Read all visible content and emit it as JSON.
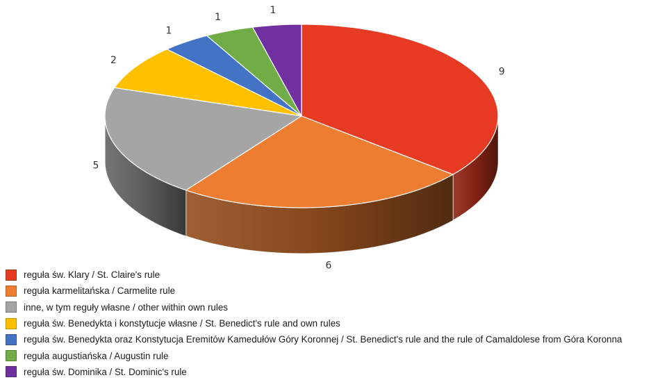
{
  "chart_data": {
    "type": "pie",
    "variant": "3d",
    "title": "",
    "series": [
      {
        "label": "reguła św. Klary / St. Claire's rule",
        "value": 9,
        "color": "#e63b22"
      },
      {
        "label": "reguła karmelitańska / Carmelite rule",
        "value": 6,
        "color": "#ed7d31"
      },
      {
        "label": "inne, w tym reguły własne / other within own rules",
        "value": 5,
        "color": "#a5a5a5"
      },
      {
        "label": "reguła św. Benedykta i konstytucje własne / St. Benedict's rule and own rules",
        "value": 2,
        "color": "#ffc000"
      },
      {
        "label": "reguła św. Benedykta oraz Konstytucja Eremitów Kamedułów Góry Koronnej / St. Benedict's rule and the rule of Camaldolese from Góra Koronna",
        "value": 1,
        "color": "#4472c4"
      },
      {
        "label": "reguła augustiańska / Augustin rule",
        "value": 1,
        "color": "#70ad47"
      },
      {
        "label": "reguła św. Dominika / St. Dominic's rule",
        "value": 1,
        "color": "#7030a0"
      }
    ],
    "data_labels": [
      "9",
      "6",
      "5",
      "2",
      "1",
      "1",
      "1"
    ],
    "legend_position": "bottom-left"
  }
}
